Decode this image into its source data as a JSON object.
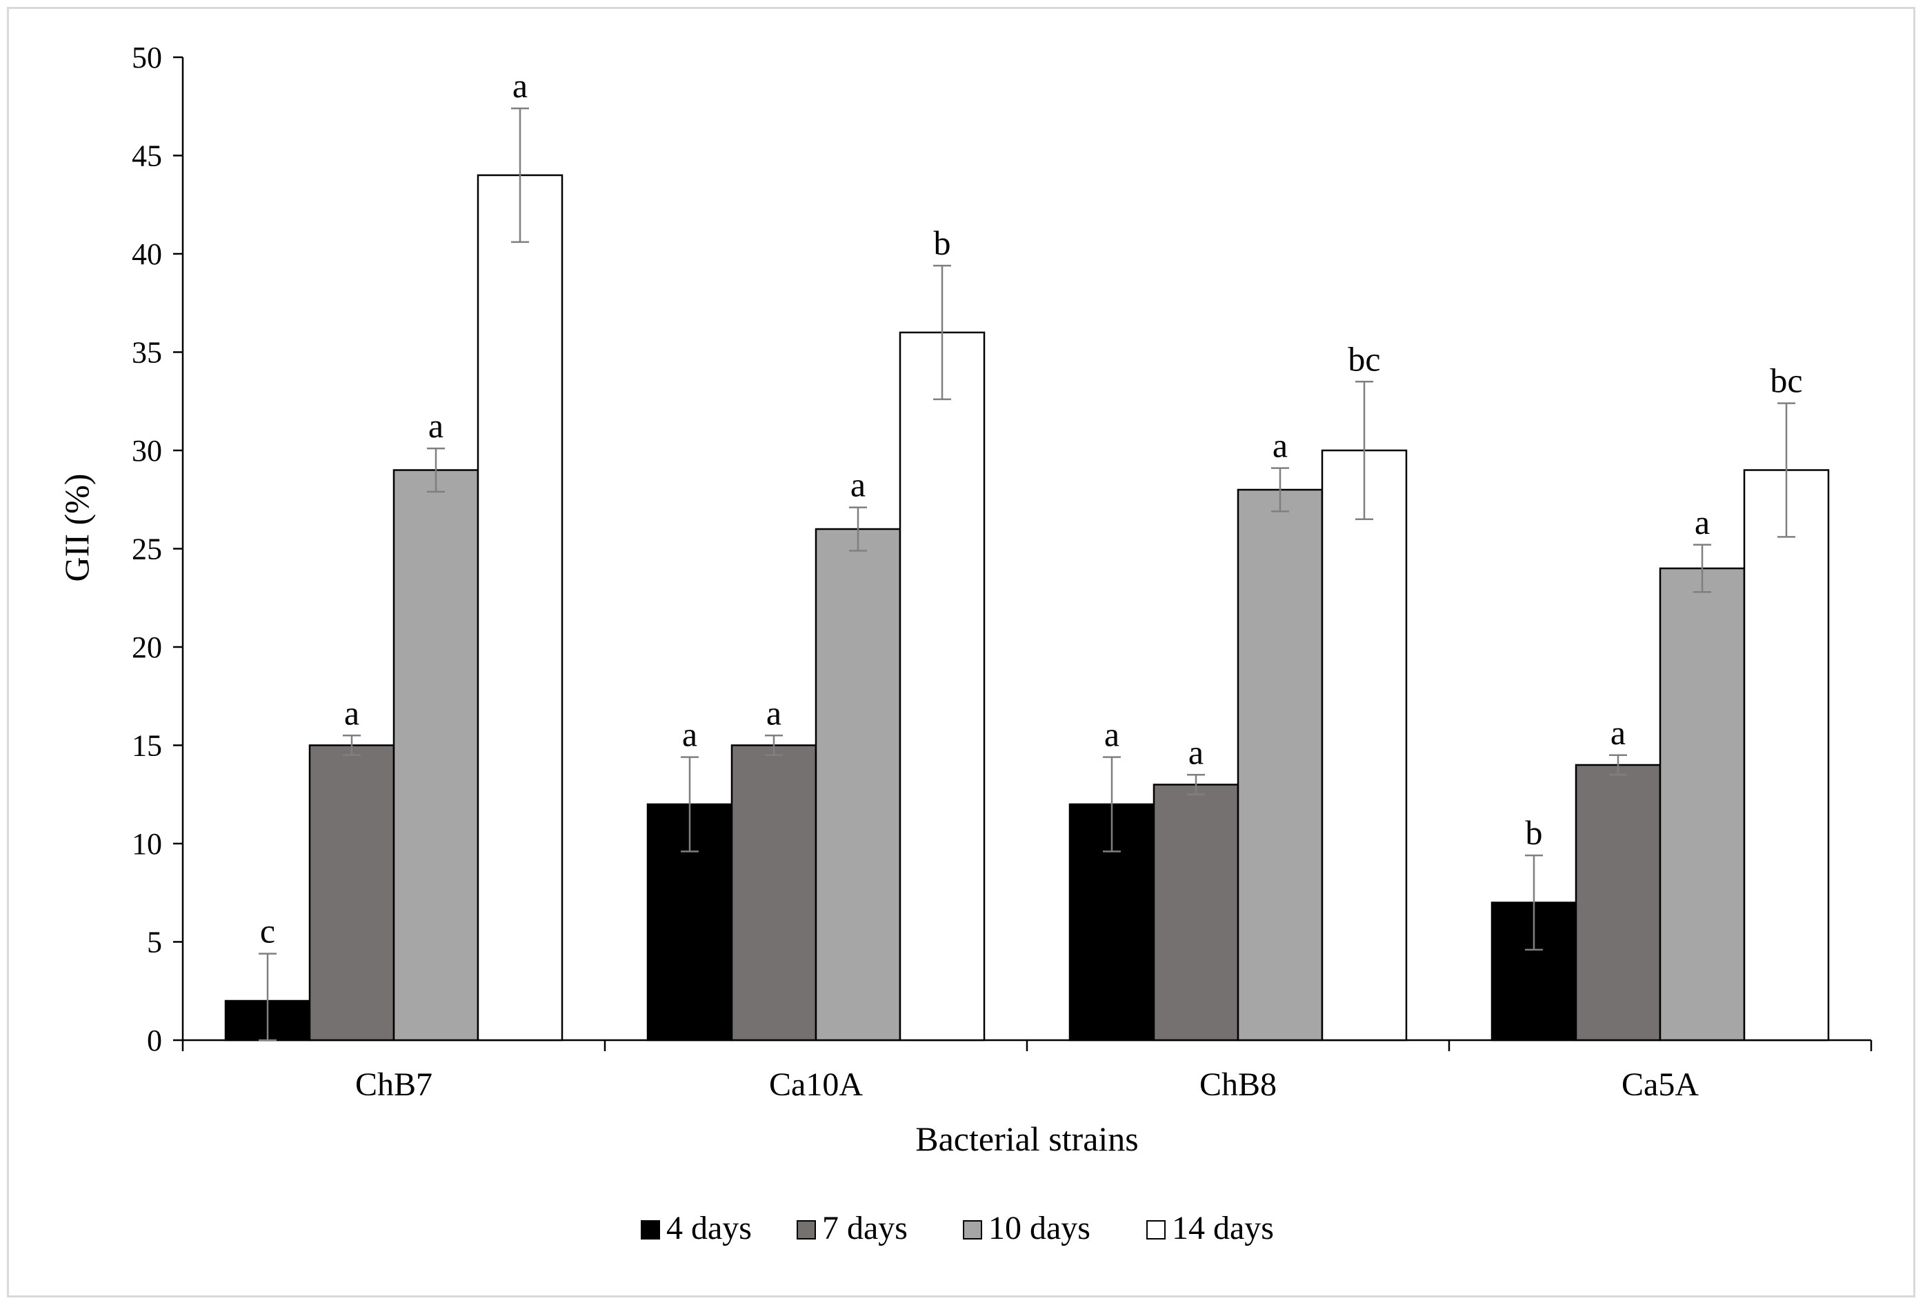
{
  "chart_data": {
    "type": "bar",
    "title": "",
    "xlabel": "Bacterial strains",
    "ylabel": "GII (%)",
    "ylim": [
      0,
      50
    ],
    "yticks": [
      0,
      5,
      10,
      15,
      20,
      25,
      30,
      35,
      40,
      45,
      50
    ],
    "categories": [
      "ChB7",
      "Ca10A",
      "ChB8",
      "Ca5A"
    ],
    "legend_position": "bottom",
    "series": [
      {
        "name": "4 days",
        "color": "#000000",
        "values": [
          2,
          12,
          12,
          7
        ],
        "errors": [
          2.4,
          2.4,
          2.4,
          2.4
        ],
        "labels": [
          "c",
          "a",
          "a",
          "b"
        ]
      },
      {
        "name": "7 days",
        "color": "#767171",
        "values": [
          15,
          15,
          13,
          14
        ],
        "errors": [
          0.5,
          0.5,
          0.5,
          0.5
        ],
        "labels": [
          "a",
          "a",
          "a",
          "a"
        ]
      },
      {
        "name": "10 days",
        "color": "#a6a6a6",
        "values": [
          29,
          26,
          28,
          24
        ],
        "errors": [
          1.1,
          1.1,
          1.1,
          1.2
        ],
        "labels": [
          "a",
          "a",
          "a",
          "a"
        ]
      },
      {
        "name": "14 days",
        "color": "#ffffff",
        "values": [
          44,
          36,
          30,
          29
        ],
        "errors": [
          3.4,
          3.4,
          3.5,
          3.4
        ],
        "labels": [
          "a",
          "b",
          "bc",
          "bc"
        ]
      }
    ]
  }
}
